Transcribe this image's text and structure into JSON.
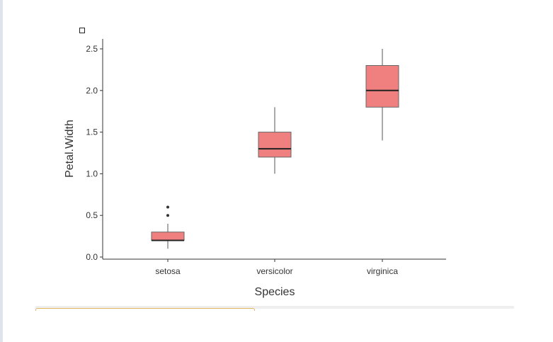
{
  "chart_data": {
    "type": "boxplot",
    "title": "",
    "xlabel": "Species",
    "ylabel": "Petal.Width",
    "ylim": [
      0,
      2.6
    ],
    "yticks": [
      "0.0",
      "0.5",
      "1.0",
      "1.5",
      "2.0",
      "2.5"
    ],
    "grid": false,
    "fill_color": "#f08080",
    "median_color": "#222222",
    "categories": [
      "setosa",
      "versicolor",
      "virginica"
    ],
    "boxes": [
      {
        "category": "setosa",
        "min": 0.1,
        "q1": 0.2,
        "median": 0.2,
        "q3": 0.3,
        "max": 0.4,
        "outliers": [
          0.5,
          0.6
        ]
      },
      {
        "category": "versicolor",
        "min": 1.0,
        "q1": 1.2,
        "median": 1.3,
        "q3": 1.5,
        "max": 1.8,
        "outliers": []
      },
      {
        "category": "virginica",
        "min": 1.4,
        "q1": 1.8,
        "median": 2.0,
        "q3": 2.3,
        "max": 2.5,
        "outliers": []
      }
    ]
  }
}
